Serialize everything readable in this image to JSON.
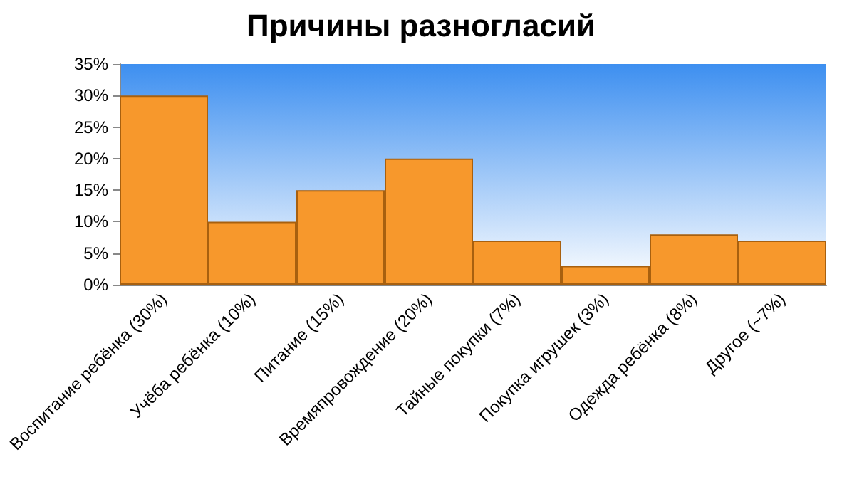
{
  "chart_data": {
    "type": "bar",
    "title": "Причины разногласий",
    "categories": [
      "Воспитание ребёнка (30%)",
      "Учёба ребёнка (10%)",
      "Питание (15%)",
      "Времяпровождение (20%)",
      "Тайные покупки (7%)",
      "Покупка игрушек (3%)",
      "Одежда ребёнка (8%)",
      "Другое (~7%)"
    ],
    "values": [
      30,
      10,
      15,
      20,
      7,
      3,
      8,
      7
    ],
    "color": "#f7982c",
    "ylim": [
      0,
      35
    ],
    "yticks": [
      {
        "value": 0,
        "label": "0%"
      },
      {
        "value": 5,
        "label": "5%"
      },
      {
        "value": 10,
        "label": "10%"
      },
      {
        "value": 15,
        "label": "15%"
      },
      {
        "value": 20,
        "label": "20%"
      },
      {
        "value": 25,
        "label": "25%"
      },
      {
        "value": 30,
        "label": "30%"
      },
      {
        "value": 35,
        "label": "35%"
      }
    ],
    "grid": false
  }
}
